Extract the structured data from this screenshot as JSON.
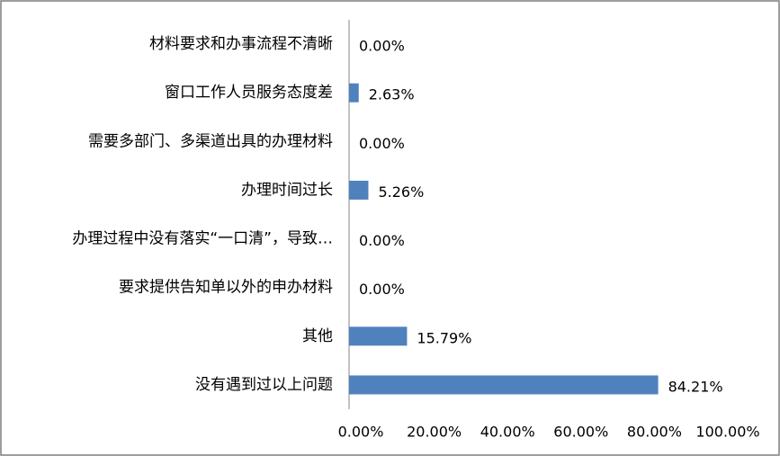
{
  "chart_data": {
    "type": "bar",
    "orientation": "horizontal",
    "title": "",
    "xlabel": "",
    "ylabel": "",
    "categories": [
      "材料要求和办事流程不清晰",
      "窗口工作人员服务态度差",
      "需要多部门、多渠道出具的办理材料",
      "办理时间过长",
      "办理过程中没有落实“一口清”，导致…",
      "要求提供告知单以外的申办材料",
      "其他",
      "没有遇到过以上问题"
    ],
    "values": [
      0.0,
      2.63,
      0.0,
      5.26,
      0.0,
      0.0,
      15.79,
      84.21
    ],
    "value_labels": [
      "0.00%",
      "2.63%",
      "0.00%",
      "5.26%",
      "0.00%",
      "0.00%",
      "15.79%",
      "84.21%"
    ],
    "xlim": [
      0,
      100
    ],
    "x_ticks": [
      "0.00%",
      "20.00%",
      "40.00%",
      "60.00%",
      "80.00%",
      "100.00%"
    ],
    "grid": false,
    "legend": "none",
    "bar_color": "#4f81bd"
  }
}
